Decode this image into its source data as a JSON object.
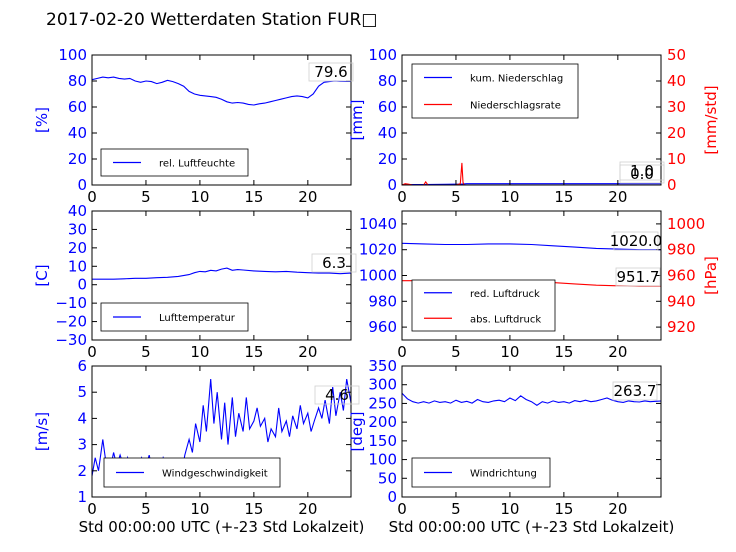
{
  "figure": {
    "title": "2017-02-20 Wetterdaten Station FUR□"
  },
  "colors": {
    "primary": "#0000ff",
    "secondary": "#ff0000",
    "frame": "#000000"
  },
  "chart_data": [
    {
      "type": "line",
      "ylabel": "[%]",
      "xlim": [
        0,
        24
      ],
      "ylim": [
        0,
        100
      ],
      "xticks": [
        "0",
        "5",
        "10",
        "15",
        "20"
      ],
      "yticks": [
        "0",
        "20",
        "40",
        "60",
        "80",
        "100"
      ],
      "annotation": "79.6",
      "legend": {
        "placement": "bottom-left",
        "entries": [
          "rel. Luftfeuchte"
        ]
      },
      "series": [
        {
          "name": "rel. Luftfeuchte",
          "axis": "left",
          "x": [
            0,
            0.5,
            1,
            1.5,
            2,
            2.5,
            3,
            3.5,
            4,
            4.5,
            5,
            5.5,
            6,
            6.5,
            7,
            7.5,
            8,
            8.5,
            9,
            9.5,
            10,
            10.5,
            11,
            11.5,
            12,
            12.5,
            13,
            13.5,
            14,
            14.5,
            15,
            15.5,
            16,
            16.5,
            17,
            17.5,
            18,
            18.5,
            19,
            19.5,
            20,
            20.5,
            21,
            21.5,
            22,
            22.5,
            23,
            23.5,
            24
          ],
          "y": [
            81,
            82,
            83,
            82.5,
            83,
            82,
            81.5,
            82,
            80,
            79,
            80,
            79.5,
            78,
            79,
            80.5,
            79.5,
            78,
            76,
            72,
            70,
            69,
            68.5,
            68,
            67.5,
            66,
            64,
            63,
            63.5,
            63,
            62,
            61.5,
            62.5,
            63,
            64,
            65,
            66,
            67,
            68,
            68.5,
            68,
            67,
            70,
            76,
            79,
            79.5,
            80,
            79.8,
            79.6,
            79.6
          ]
        }
      ]
    },
    {
      "type": "line",
      "ylabel": "[mm]",
      "ylabel_right": "[mm/std]",
      "xlim": [
        0,
        24
      ],
      "ylim": [
        0,
        100
      ],
      "ylim_right": [
        0,
        50
      ],
      "xticks": [
        "0",
        "5",
        "10",
        "15",
        "20"
      ],
      "yticks": [
        "0",
        "20",
        "40",
        "60",
        "80",
        "100"
      ],
      "yticks_right": [
        "0",
        "10",
        "20",
        "30",
        "40",
        "50"
      ],
      "annotations": [
        "0.0",
        "1.0"
      ],
      "legend": {
        "placement": "top-left",
        "entries": [
          "kum. Niederschlag",
          "Niederschlagsrate"
        ]
      },
      "series": [
        {
          "name": "kum. Niederschlag",
          "axis": "left",
          "x": [
            0,
            2,
            4,
            5.5,
            6,
            8,
            10,
            12,
            14,
            16,
            18,
            20,
            22,
            24
          ],
          "y": [
            0.3,
            0.4,
            0.5,
            0.7,
            1.0,
            1.0,
            1.0,
            1.0,
            1.0,
            1.0,
            1.0,
            1.0,
            1.0,
            1.0
          ]
        },
        {
          "name": "Niederschlagsrate",
          "axis": "right",
          "x": [
            0,
            0.3,
            0.6,
            1,
            1.5,
            2.0,
            2.2,
            2.4,
            3,
            4,
            5,
            5.4,
            5.55,
            5.65,
            5.75,
            6,
            7,
            8,
            10,
            12,
            14,
            16,
            18,
            20,
            22,
            24
          ],
          "y": [
            0,
            0.5,
            0.3,
            0,
            0,
            0,
            1.2,
            0,
            0,
            0,
            0,
            0.5,
            8.5,
            1,
            0,
            0,
            0,
            0,
            0,
            0,
            0,
            0,
            0,
            0,
            0,
            0
          ]
        }
      ]
    },
    {
      "type": "line",
      "ylabel": "[C]",
      "xlim": [
        0,
        24
      ],
      "ylim": [
        -30,
        40
      ],
      "xticks": [
        "0",
        "5",
        "10",
        "15",
        "20"
      ],
      "yticks": [
        "−30",
        "−20",
        "−10",
        "0",
        "10",
        "20",
        "30",
        "40"
      ],
      "annotation": "6.3",
      "legend": {
        "placement": "bottom-left",
        "entries": [
          "Lufttemperatur"
        ]
      },
      "series": [
        {
          "name": "Lufttemperatur",
          "axis": "left",
          "x": [
            0,
            1,
            2,
            3,
            4,
            5,
            6,
            7,
            8,
            9,
            9.5,
            10,
            10.5,
            11,
            11.5,
            12,
            12.5,
            13,
            13.5,
            14,
            15,
            16,
            17,
            18,
            19,
            20,
            21,
            22,
            23,
            24
          ],
          "y": [
            3,
            3,
            3,
            3.2,
            3.5,
            3.5,
            3.8,
            4,
            4.5,
            5.5,
            6.5,
            7.2,
            7,
            7.8,
            7.5,
            8.5,
            9,
            7.8,
            8.2,
            8,
            7.5,
            7.2,
            7,
            7.2,
            6.8,
            6.5,
            6.3,
            6.3,
            6,
            6.3
          ]
        }
      ]
    },
    {
      "type": "line",
      "ylabel_right": "[hPa]",
      "xlim": [
        0,
        24
      ],
      "ylim": [
        950,
        1050
      ],
      "ylim_right": [
        910,
        1010
      ],
      "xticks": [
        "0",
        "5",
        "10",
        "15",
        "20"
      ],
      "yticks": [
        "960",
        "980",
        "1000",
        "1020",
        "1040"
      ],
      "yticks_right": [
        "920",
        "940",
        "960",
        "980",
        "1000"
      ],
      "annotations": [
        "1020.0",
        "951.7"
      ],
      "legend": {
        "placement": "bottom-left",
        "entries": [
          "red. Luftdruck",
          "abs. Luftdruck"
        ]
      },
      "series": [
        {
          "name": "red. Luftdruck",
          "axis": "left",
          "x": [
            0,
            2,
            4,
            6,
            8,
            10,
            12,
            14,
            16,
            18,
            20,
            22,
            24
          ],
          "y": [
            1025,
            1024.5,
            1024,
            1024,
            1024.5,
            1024.5,
            1024,
            1023,
            1022,
            1021,
            1020.5,
            1020,
            1020
          ]
        },
        {
          "name": "abs. Luftdruck",
          "axis": "right",
          "x": [
            0,
            2,
            4,
            6,
            8,
            10,
            12,
            14,
            16,
            18,
            20,
            22,
            24
          ],
          "y": [
            956,
            956,
            955.8,
            955.8,
            955.9,
            956,
            955.5,
            954.5,
            953.5,
            952.5,
            952,
            951.7,
            951.7
          ]
        }
      ]
    },
    {
      "type": "line",
      "ylabel": "[m/s]",
      "xlabel": "Std 00:00:00 UTC (+-23 Std Lokalzeit)",
      "xlim": [
        0,
        24
      ],
      "ylim": [
        1,
        6
      ],
      "xticks": [
        "0",
        "5",
        "10",
        "15",
        "20"
      ],
      "yticks": [
        "1",
        "2",
        "3",
        "4",
        "5",
        "6"
      ],
      "annotation": "4.6",
      "legend": {
        "placement": "bottom-center",
        "entries": [
          "Windgeschwindigkeit"
        ]
      },
      "series": [
        {
          "name": "Windgeschwindigkeit",
          "axis": "left",
          "x": [
            0,
            0.3,
            0.6,
            1,
            1.3,
            1.6,
            2,
            2.3,
            2.6,
            3,
            3.3,
            3.6,
            4,
            4.3,
            4.6,
            5,
            5.3,
            5.6,
            6,
            6.3,
            6.6,
            7,
            7.3,
            7.6,
            8,
            8.3,
            8.6,
            9,
            9.3,
            9.6,
            10,
            10.3,
            10.6,
            11,
            11.3,
            11.6,
            12,
            12.3,
            12.6,
            13,
            13.3,
            13.6,
            14,
            14.3,
            14.6,
            15,
            15.3,
            15.6,
            16,
            16.3,
            16.6,
            17,
            17.3,
            17.6,
            18,
            18.3,
            18.6,
            19,
            19.3,
            19.6,
            20,
            20.3,
            20.6,
            21,
            21.3,
            21.6,
            22,
            22.3,
            22.6,
            23,
            23.3,
            23.6,
            24
          ],
          "y": [
            1.8,
            2.5,
            2.0,
            3.2,
            2.3,
            1.9,
            2.7,
            2.2,
            2.6,
            2.1,
            2.5,
            2.0,
            2.4,
            1.9,
            2.5,
            2.2,
            2.6,
            2.0,
            2.3,
            1.9,
            2.5,
            2.1,
            2.4,
            1.8,
            2.2,
            1.9,
            2.6,
            3.2,
            2.7,
            3.8,
            3.1,
            4.5,
            3.5,
            5.5,
            3.8,
            5.0,
            3.2,
            4.6,
            3.0,
            4.8,
            3.3,
            4.2,
            3.5,
            4.8,
            3.6,
            3.9,
            4.4,
            3.7,
            4.0,
            3.1,
            3.6,
            3.3,
            4.4,
            3.5,
            3.9,
            3.3,
            4.1,
            3.6,
            4.5,
            3.8,
            4.2,
            3.5,
            3.9,
            4.4,
            4.0,
            4.7,
            3.8,
            5.2,
            4.1,
            5.0,
            4.3,
            5.5,
            4.6
          ]
        }
      ]
    },
    {
      "type": "line",
      "ylabel": "[deg]",
      "xlabel": "Std 00:00:00 UTC (+-23 Std Lokalzeit)",
      "xlim": [
        0,
        24
      ],
      "ylim": [
        0,
        360
      ],
      "xticks": [
        "0",
        "5",
        "10",
        "15",
        "20"
      ],
      "yticks": [
        "0",
        "50",
        "100",
        "150",
        "200",
        "250",
        "300",
        "350"
      ],
      "annotation": "263.7",
      "legend": {
        "placement": "bottom-left",
        "entries": [
          "Windrichtung"
        ]
      },
      "series": [
        {
          "name": "Windrichtung",
          "axis": "left",
          "x": [
            0,
            0.5,
            1,
            1.5,
            2,
            2.5,
            3,
            3.5,
            4,
            4.5,
            5,
            5.5,
            6,
            6.5,
            7,
            7.5,
            8,
            8.5,
            9,
            9.5,
            10,
            10.5,
            11,
            11.5,
            12,
            12.5,
            13,
            13.5,
            14,
            14.5,
            15,
            15.5,
            16,
            16.5,
            17,
            17.5,
            18,
            18.5,
            19,
            19.5,
            20,
            20.5,
            21,
            21.5,
            22,
            22.5,
            23,
            23.5,
            24
          ],
          "y": [
            285,
            270,
            262,
            258,
            262,
            258,
            264,
            260,
            262,
            258,
            266,
            260,
            263,
            258,
            268,
            262,
            260,
            264,
            266,
            262,
            272,
            265,
            278,
            268,
            262,
            252,
            262,
            258,
            264,
            260,
            262,
            258,
            265,
            262,
            266,
            262,
            264,
            268,
            272,
            266,
            262,
            260,
            264,
            262,
            261,
            264,
            262,
            263,
            263.7
          ]
        }
      ]
    }
  ]
}
